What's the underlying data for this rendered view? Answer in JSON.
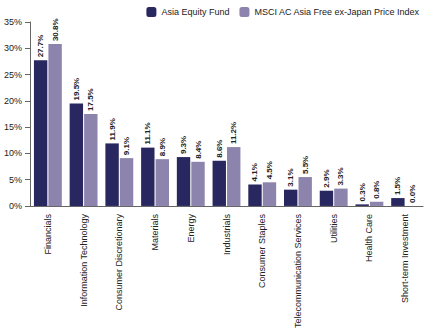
{
  "chart_data": {
    "type": "bar",
    "categories": [
      "Financials",
      "Information Technology",
      "Consumer Discretionary",
      "Materials",
      "Energy",
      "Industrials",
      "Consumer Staples",
      "Telecommunication Services",
      "Utilities",
      "Health Care",
      "Short-term Investment"
    ],
    "series": [
      {
        "name": "Asia Equity Fund",
        "color": "#28275f",
        "values": [
          27.7,
          19.5,
          11.9,
          11.1,
          9.3,
          8.6,
          4.1,
          3.1,
          2.9,
          0.3,
          1.5
        ],
        "value_labels": [
          "27.7%",
          "19.5%",
          "11.9%",
          "11.1%",
          "9.3%",
          "8.6%",
          "4.1%",
          "3.1%",
          "2.9%",
          "0.3%",
          "1.5%"
        ]
      },
      {
        "name": "MSCI AC Asia Free ex-Japan Price Index",
        "color": "#8c84ad",
        "values": [
          30.8,
          17.5,
          9.1,
          8.9,
          8.4,
          11.2,
          4.5,
          5.5,
          3.3,
          0.8,
          0.0
        ],
        "value_labels": [
          "30.8%",
          "17.5%",
          "9.1%",
          "8.9%",
          "8.4%",
          "11.2%",
          "4.5%",
          "5.5%",
          "3.3%",
          "0.8%",
          "0.0%"
        ]
      }
    ],
    "ylim": [
      0,
      35
    ],
    "yticks": [
      {
        "value": 0,
        "label": "0%"
      },
      {
        "value": 5,
        "label": "5%"
      },
      {
        "value": 10,
        "label": "10%"
      },
      {
        "value": 15,
        "label": "15%"
      },
      {
        "value": 20,
        "label": "20%"
      },
      {
        "value": 25,
        "label": "25%"
      },
      {
        "value": 30,
        "label": "30%"
      },
      {
        "value": 35,
        "label": "35%"
      }
    ],
    "grid": false,
    "legend": "top-right",
    "data_labels": true
  }
}
